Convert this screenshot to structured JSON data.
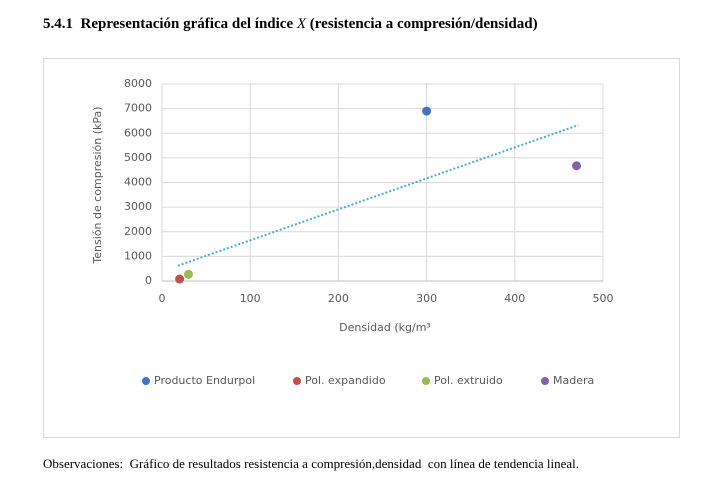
{
  "heading": {
    "number": "5.4.1",
    "title_before": "Representación gráfica del índice ",
    "title_var": "X",
    "title_after": " (resistencia a compresión/densidad)"
  },
  "chart_data": {
    "type": "scatter",
    "x_label": "Densidad (kg/m³",
    "y_label": "Tensión de compresión (kPa)",
    "xlim": [
      0,
      500
    ],
    "xticks": [
      0,
      100,
      200,
      300,
      400,
      500
    ],
    "ylim": [
      0,
      8000
    ],
    "yticks": [
      0,
      1000,
      2000,
      3000,
      4000,
      5000,
      6000,
      7000,
      8000
    ],
    "grid": true,
    "legend": "bottom",
    "series": [
      {
        "name": "Producto Endurpol",
        "color": "#4472c4",
        "x": [
          300
        ],
        "values": [
          6900
        ]
      },
      {
        "name": "Pol. expandido",
        "color": "#c0504d",
        "x": [
          20
        ],
        "values": [
          80
        ]
      },
      {
        "name": "Pol. extruido",
        "color": "#9bbb59",
        "x": [
          30
        ],
        "values": [
          270
        ]
      },
      {
        "name": "Madera",
        "color": "#8064a2",
        "x": [
          470
        ],
        "values": [
          4680
        ]
      }
    ],
    "trendline": {
      "color": "#4bacc6",
      "x": [
        18,
        472
      ],
      "values": [
        620,
        6330
      ]
    }
  },
  "caption": "Observaciones:  Gráfico de resultados resistencia a compresión,densidad  con línea de tendencia lineal."
}
